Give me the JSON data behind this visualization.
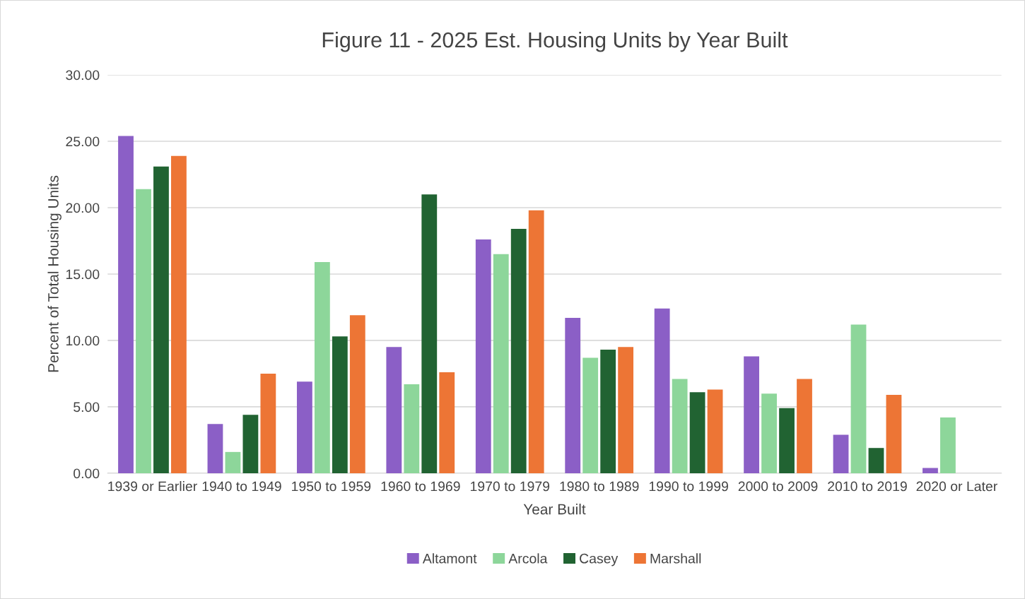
{
  "chart_data": {
    "type": "bar",
    "title": "Figure 11 - 2025 Est. Housing Units by Year Built",
    "xlabel": "Year Built",
    "ylabel": "Percent of Total Housing Units",
    "categories": [
      "1939 or Earlier",
      "1940 to 1949",
      "1950 to 1959",
      "1960 to 1969",
      "1970 to 1979",
      "1980 to 1989",
      "1990 to 1999",
      "2000 to 2009",
      "2010 to 2019",
      "2020 or Later"
    ],
    "series": [
      {
        "name": "Altamont",
        "color": "#8b5fc6",
        "values": [
          25.4,
          3.7,
          6.9,
          9.5,
          17.6,
          11.7,
          12.4,
          8.8,
          2.9,
          0.4
        ]
      },
      {
        "name": "Arcola",
        "color": "#8dd69a",
        "values": [
          21.4,
          1.6,
          15.9,
          6.7,
          16.5,
          8.7,
          7.1,
          6.0,
          11.2,
          4.2
        ]
      },
      {
        "name": "Casey",
        "color": "#216332",
        "values": [
          23.1,
          4.4,
          10.3,
          21.0,
          18.4,
          9.3,
          6.1,
          4.9,
          1.9,
          0
        ]
      },
      {
        "name": "Marshall",
        "color": "#ed7535",
        "values": [
          23.9,
          7.5,
          11.9,
          7.6,
          19.8,
          9.5,
          6.3,
          7.1,
          5.9,
          0
        ]
      }
    ],
    "ylim": [
      0,
      30
    ],
    "yticks": [
      {
        "value": 0,
        "label": "0.00"
      },
      {
        "value": 5,
        "label": "5.00"
      },
      {
        "value": 10,
        "label": "10.00"
      },
      {
        "value": 15,
        "label": "15.00"
      },
      {
        "value": 20,
        "label": "20.00"
      },
      {
        "value": 25,
        "label": "25.00"
      },
      {
        "value": 30,
        "label": "30.00"
      }
    ],
    "grid": "y",
    "legend": "bottom"
  }
}
